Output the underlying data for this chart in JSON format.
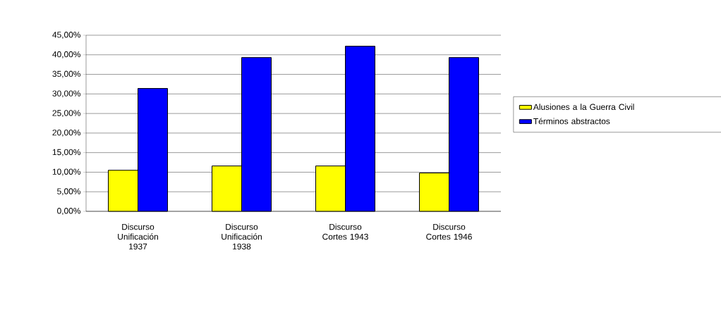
{
  "chart_data": {
    "type": "bar",
    "categories": [
      "Discurso Unificación 1937",
      "Discurso Unificación 1938",
      "Discurso Cortes 1943",
      "Discurso Cortes 1946"
    ],
    "series": [
      {
        "name": "Alusiones a la Guerra Civil",
        "color": "#ffff00",
        "values": [
          10.5,
          11.6,
          11.6,
          9.8
        ]
      },
      {
        "name": "Términos abstractos",
        "color": "#0000ff",
        "values": [
          31.4,
          39.3,
          42.2,
          39.3
        ]
      }
    ],
    "ylim": [
      0,
      45
    ],
    "yticks": [
      {
        "value": 0,
        "label": "0,00%"
      },
      {
        "value": 5,
        "label": "5,00%"
      },
      {
        "value": 10,
        "label": "10,00%"
      },
      {
        "value": 15,
        "label": "15,00%"
      },
      {
        "value": 20,
        "label": "20,00%"
      },
      {
        "value": 25,
        "label": "25,00%"
      },
      {
        "value": 30,
        "label": "30,00%"
      },
      {
        "value": 35,
        "label": "35,00%"
      },
      {
        "value": 40,
        "label": "40,00%"
      },
      {
        "value": 45,
        "label": "45,00%"
      }
    ],
    "grid": "y",
    "legend": "right"
  }
}
